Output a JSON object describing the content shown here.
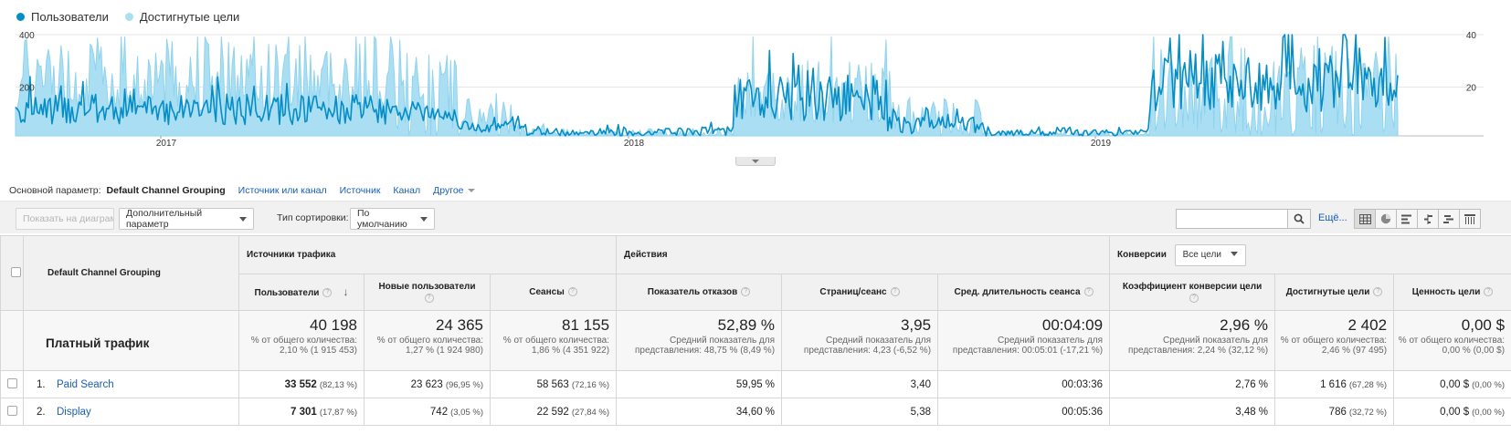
{
  "legend": {
    "series1": {
      "label": "Пользователи",
      "color": "#058dc7"
    },
    "series2": {
      "label": "Достигнутые цели",
      "color": "#aadff3"
    }
  },
  "chart_data": {
    "type": "line",
    "left_axis": {
      "ticks": [
        "400",
        "200"
      ],
      "range": [
        0,
        400
      ]
    },
    "right_axis": {
      "ticks": [
        "40",
        "20"
      ],
      "range": [
        0,
        40
      ]
    },
    "x_tick_labels": [
      "2017",
      "2018",
      "2019"
    ],
    "grid": true,
    "legend_position": "top-left",
    "series": [
      {
        "name": "Пользователи",
        "color": "#058dc7",
        "axis": "left",
        "style": "line"
      },
      {
        "name": "Достигнутые цели",
        "color": "#aadff3",
        "axis": "right",
        "style": "area"
      }
    ],
    "segments": [
      {
        "start": 0.0,
        "end": 0.27,
        "users": [
          15,
          55
        ],
        "goals": [
          10,
          40
        ]
      },
      {
        "start": 0.27,
        "end": 0.32,
        "users": [
          20,
          40
        ],
        "goals": [
          0,
          35
        ]
      },
      {
        "start": 0.32,
        "end": 0.37,
        "users": [
          5,
          20
        ],
        "goals": [
          0,
          15
        ]
      },
      {
        "start": 0.37,
        "end": 0.47,
        "users": [
          0,
          10
        ],
        "goals": [
          0,
          3
        ]
      },
      {
        "start": 0.47,
        "end": 0.52,
        "users": [
          0,
          12
        ],
        "goals": [
          0,
          2
        ]
      },
      {
        "start": 0.52,
        "end": 0.63,
        "users": [
          20,
          80
        ],
        "goals": [
          5,
          30
        ]
      },
      {
        "start": 0.63,
        "end": 0.7,
        "users": [
          3,
          25
        ],
        "goals": [
          0,
          15
        ]
      },
      {
        "start": 0.7,
        "end": 0.82,
        "users": [
          0,
          8
        ],
        "goals": [
          0,
          2
        ]
      },
      {
        "start": 0.82,
        "end": 0.99,
        "users": [
          30,
          110
        ],
        "goals": [
          0,
          36
        ]
      }
    ]
  },
  "primary_dimension": {
    "label": "Основной параметр:",
    "current": "Default Channel Grouping",
    "links": [
      "Источник или канал",
      "Источник",
      "Канал"
    ],
    "more": "Другое"
  },
  "toolbar": {
    "plot_rows": "Показать на диаграмме",
    "secondary_dimension": "Дополнительный параметр",
    "sort_type_label": "Тип сортировки:",
    "sort_value": "По умолчанию",
    "search_value": "",
    "more_link": "Ещё..."
  },
  "table": {
    "dimension_header": "Default Channel Grouping",
    "group_headers": {
      "acquisition": "Источники трафика",
      "behavior": "Действия",
      "conversions": "Конверсии",
      "goal_select": "Все цели"
    },
    "columns": [
      "Пользователи",
      "Новые пользователи",
      "Сеансы",
      "Показатель отказов",
      "Страниц/сеанс",
      "Сред. длительность сеанса",
      "Коэффициент конверсии цели",
      "Достигнутые цели",
      "Ценность цели"
    ],
    "totals": {
      "label": "Платный трафик",
      "cells": [
        {
          "value": "40 198",
          "sub": "% от общего количества: 2,10 % (1 915 453)"
        },
        {
          "value": "24 365",
          "sub": "% от общего количества: 1,27 % (1 924 980)"
        },
        {
          "value": "81 155",
          "sub": "% от общего количества: 1,86 % (4 351 922)"
        },
        {
          "value": "52,89 %",
          "sub": "Средний показатель для представления: 48,75 % (8,49 %)"
        },
        {
          "value": "3,95",
          "sub": "Средний показатель для представления: 4,23 (-6,52 %)"
        },
        {
          "value": "00:04:09",
          "sub": "Средний показатель для представления: 00:05:01 (-17,21 %)"
        },
        {
          "value": "2,96 %",
          "sub": "Средний показатель для представления: 2,24 % (32,12 %)"
        },
        {
          "value": "2 402",
          "sub": "% от общего количества: 2,46 % (97 495)"
        },
        {
          "value": "0,00 $",
          "sub": "% от общего количества: 0,00 % (0,00 $)"
        }
      ]
    },
    "rows": [
      {
        "index": "1.",
        "name": "Paid Search",
        "users": "33 552",
        "users_pct": "(82,13 %)",
        "new_users": "23 623",
        "new_users_pct": "(96,95 %)",
        "sessions": "58 563",
        "sessions_pct": "(72,16 %)",
        "bounce": "59,95 %",
        "pages": "3,40",
        "duration": "00:03:36",
        "conv_rate": "2,76 %",
        "goals": "1 616",
        "goals_pct": "(67,28 %)",
        "value": "0,00 $",
        "value_pct": "(0,00 %)"
      },
      {
        "index": "2.",
        "name": "Display",
        "users": "7 301",
        "users_pct": "(17,87 %)",
        "new_users": "742",
        "new_users_pct": "(3,05 %)",
        "sessions": "22 592",
        "sessions_pct": "(27,84 %)",
        "bounce": "34,60 %",
        "pages": "5,38",
        "duration": "00:05:36",
        "conv_rate": "3,48 %",
        "goals": "786",
        "goals_pct": "(32,72 %)",
        "value": "0,00 $",
        "value_pct": "(0,00 %)"
      }
    ]
  }
}
